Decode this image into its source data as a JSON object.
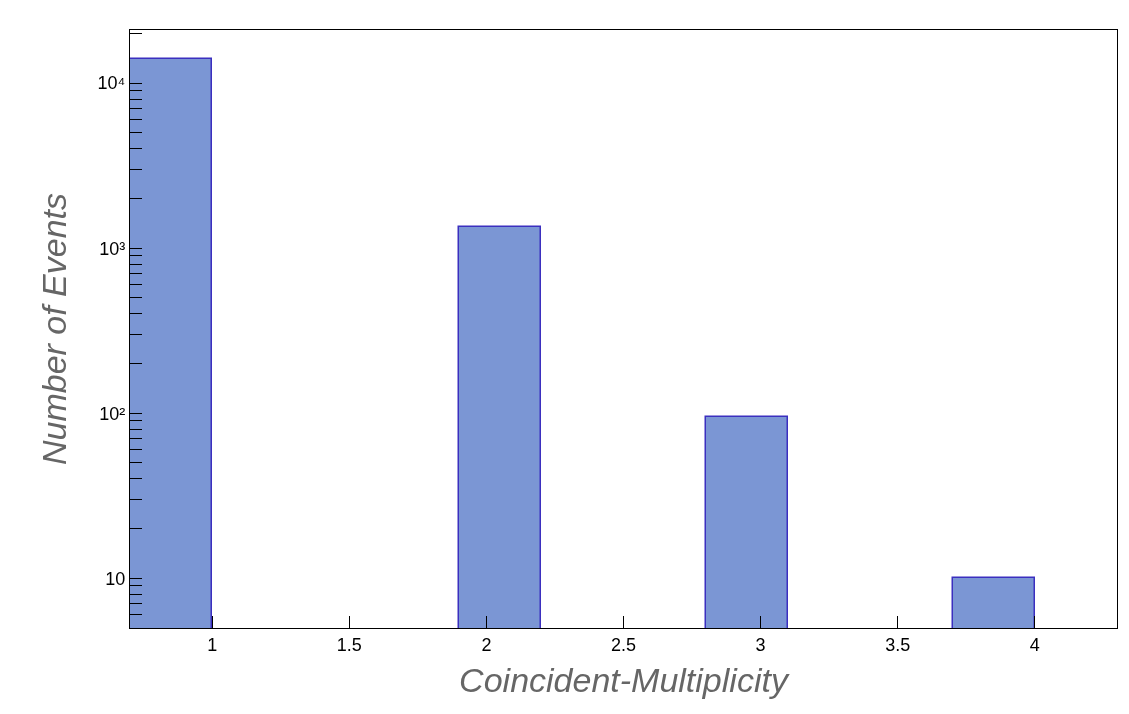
{
  "chart_data": {
    "type": "histogram",
    "xlabel": "Coincident-Multiplicity",
    "ylabel": "Number of Events",
    "bins": [
      0.7,
      1.0,
      1.3,
      1.6,
      1.9,
      2.2,
      2.5,
      2.8,
      3.1,
      3.4,
      3.7,
      4.0,
      4.3
    ],
    "values": [
      14000,
      null,
      null,
      null,
      1350,
      null,
      null,
      95,
      null,
      null,
      10,
      null
    ],
    "color": "#7b96d4",
    "xlim": [
      0.7,
      4.3
    ],
    "xticks": [
      1,
      1.5,
      2,
      2.5,
      3,
      3.5,
      4
    ],
    "log": true,
    "ylim": [
      5,
      21000
    ],
    "yticks": [
      {
        "value": 5,
        "label": null
      },
      {
        "value": 6,
        "label": null
      },
      {
        "value": 7,
        "label": null
      },
      {
        "value": 8,
        "label": null
      },
      {
        "value": 9,
        "label": null
      },
      10,
      {
        "value": 20,
        "label": null
      },
      {
        "value": 30,
        "label": null
      },
      {
        "value": 40,
        "label": null
      },
      {
        "value": 50,
        "label": null
      },
      {
        "value": 60,
        "label": null
      },
      {
        "value": 70,
        "label": null
      },
      {
        "value": 80,
        "label": null
      },
      {
        "value": 90,
        "label": null
      },
      {
        "value": 100,
        "label": "10²"
      },
      {
        "value": 200,
        "label": null
      },
      {
        "value": 300,
        "label": null
      },
      {
        "value": 400,
        "label": null
      },
      {
        "value": 500,
        "label": null
      },
      {
        "value": 600,
        "label": null
      },
      {
        "value": 700,
        "label": null
      },
      {
        "value": 800,
        "label": null
      },
      {
        "value": 900,
        "label": null
      },
      {
        "value": 1000,
        "label": "10³"
      },
      {
        "value": 2000,
        "label": null
      },
      {
        "value": 3000,
        "label": null
      },
      {
        "value": 4000,
        "label": null
      },
      {
        "value": 5000,
        "label": null
      },
      {
        "value": 6000,
        "label": null
      },
      {
        "value": 7000,
        "label": null
      },
      {
        "value": 8000,
        "label": null
      },
      {
        "value": 9000,
        "label": null
      },
      {
        "value": 10000,
        "label": "10⁴"
      },
      {
        "value": 20000,
        "label": null
      }
    ],
    "grid": false
  }
}
